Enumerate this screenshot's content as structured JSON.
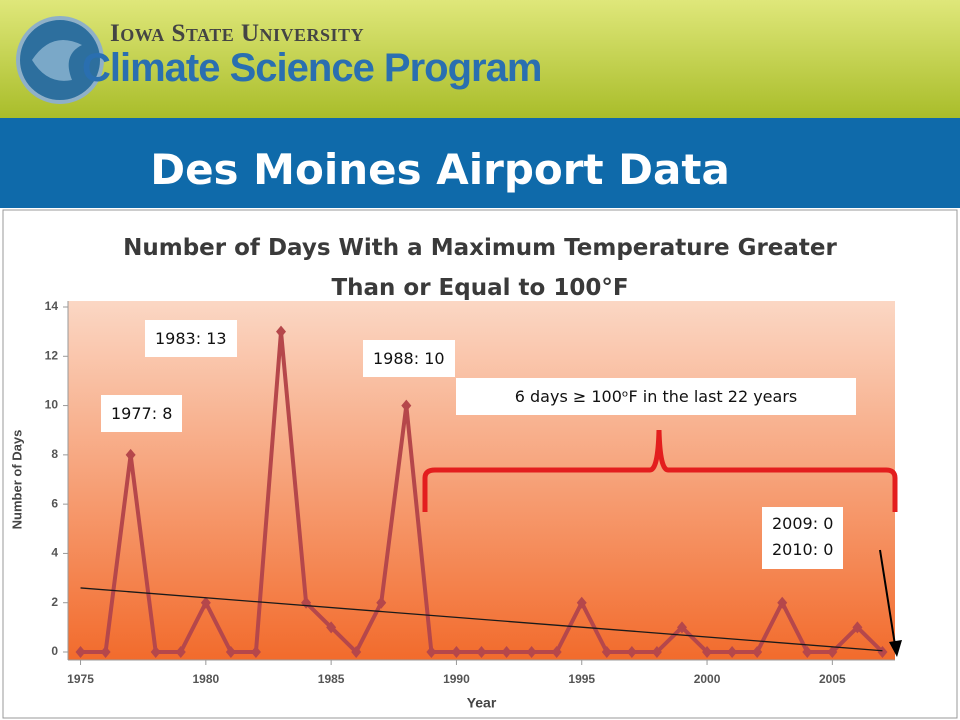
{
  "header": {
    "university": "Iowa State University",
    "program": "Climate Science Program"
  },
  "slide_title": "Des Moines Airport Data",
  "chart_data": {
    "type": "line",
    "title": "Number of Days With a Maximum Temperature Greater Than or Equal to 100°F",
    "x_label": "Year",
    "y_label": "Number of Days",
    "x": [
      1975,
      1976,
      1977,
      1978,
      1979,
      1980,
      1981,
      1982,
      1983,
      1984,
      1985,
      1986,
      1987,
      1988,
      1989,
      1990,
      1991,
      1992,
      1993,
      1994,
      1995,
      1996,
      1997,
      1998,
      1999,
      2000,
      2001,
      2002,
      2003,
      2004,
      2005,
      2006,
      2007
    ],
    "series": [
      {
        "name": "Days ≥ 100°F",
        "color": "#b5474b",
        "values": [
          0,
          0,
          8,
          0,
          0,
          2,
          0,
          0,
          13,
          2,
          1,
          0,
          2,
          10,
          0,
          0,
          0,
          0,
          0,
          0,
          2,
          0,
          0,
          0,
          1,
          0,
          0,
          0,
          2,
          0,
          0,
          1,
          0
        ]
      }
    ],
    "trendline": {
      "color": "#1a1a1a",
      "x": [
        1975,
        2007
      ],
      "values": [
        2.6,
        0.05
      ]
    },
    "xlim": [
      1974.5,
      2007.5
    ],
    "ylim": [
      0,
      14
    ],
    "xticks": [
      1975,
      1980,
      1985,
      1990,
      1995,
      2000,
      2005
    ],
    "yticks": [
      0,
      2,
      4,
      6,
      8,
      10,
      12,
      14
    ],
    "annotations": [
      "1983:  13",
      "1988:  10",
      "1977:  8",
      "6 days ≥ 100ᵒF in the last 22 years",
      "2009:  0",
      "2010:  0"
    ]
  }
}
